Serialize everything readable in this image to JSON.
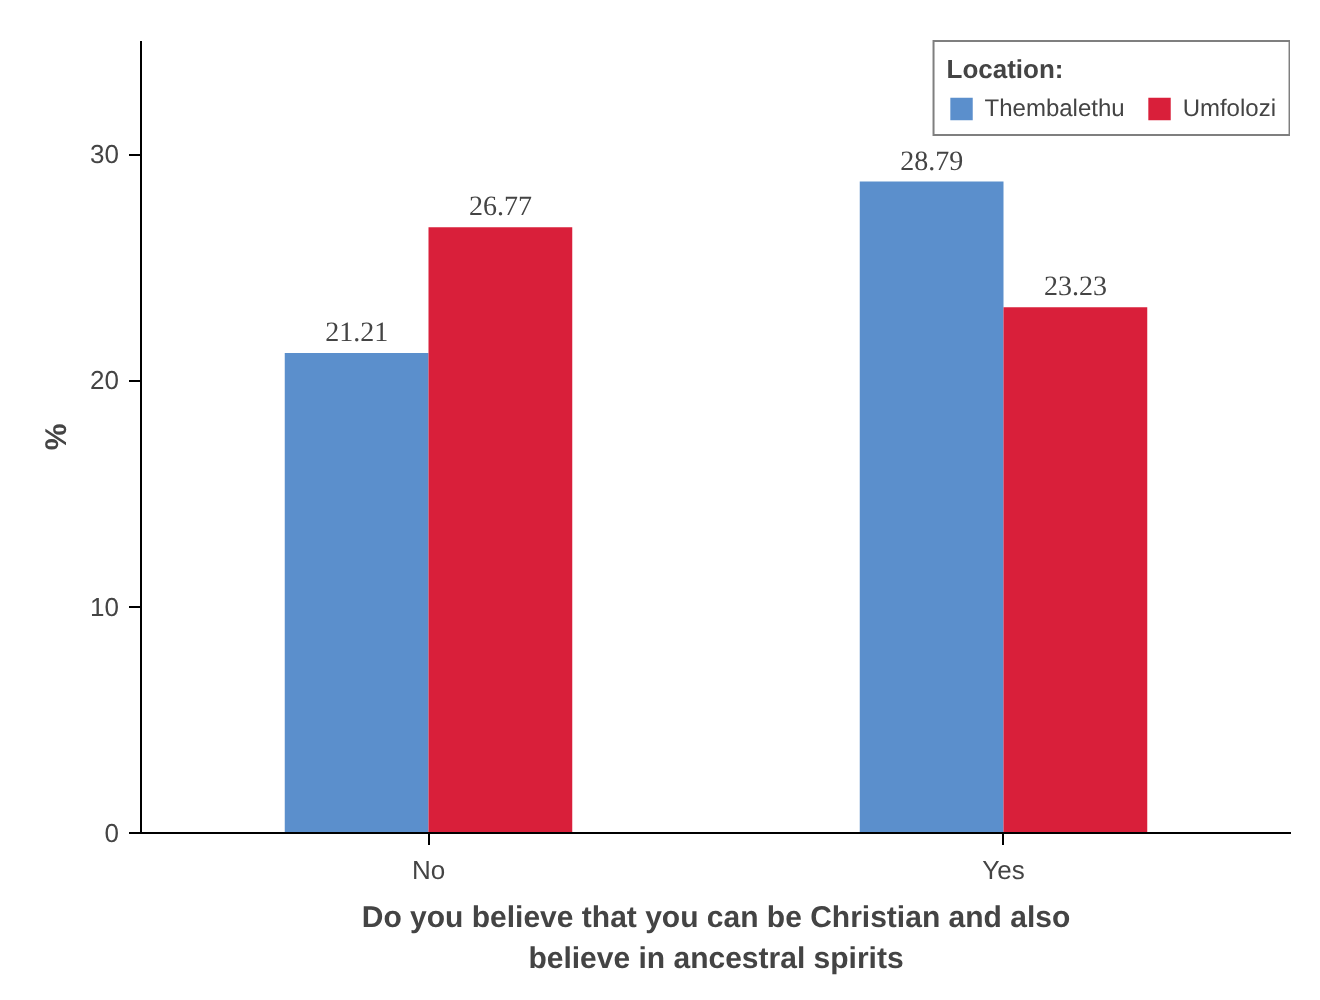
{
  "chart_data": {
    "type": "bar",
    "xlabel": "Do you believe that you can be Christian and also\nbelieve in ancestral spirits",
    "ylabel": "%",
    "legend_title": "Location:",
    "categories": [
      "No",
      "Yes"
    ],
    "series": [
      {
        "name": "Thembalethu",
        "color": "#5b8fcc",
        "values": [
          21.21,
          28.79
        ]
      },
      {
        "name": "Umfolozi",
        "color": "#d91f3a",
        "values": [
          26.77,
          23.23
        ]
      }
    ],
    "ylim": [
      0,
      35
    ],
    "yticks": [
      0,
      10,
      20,
      30
    ],
    "data_labels": true,
    "grid": false,
    "legend": "top right"
  }
}
